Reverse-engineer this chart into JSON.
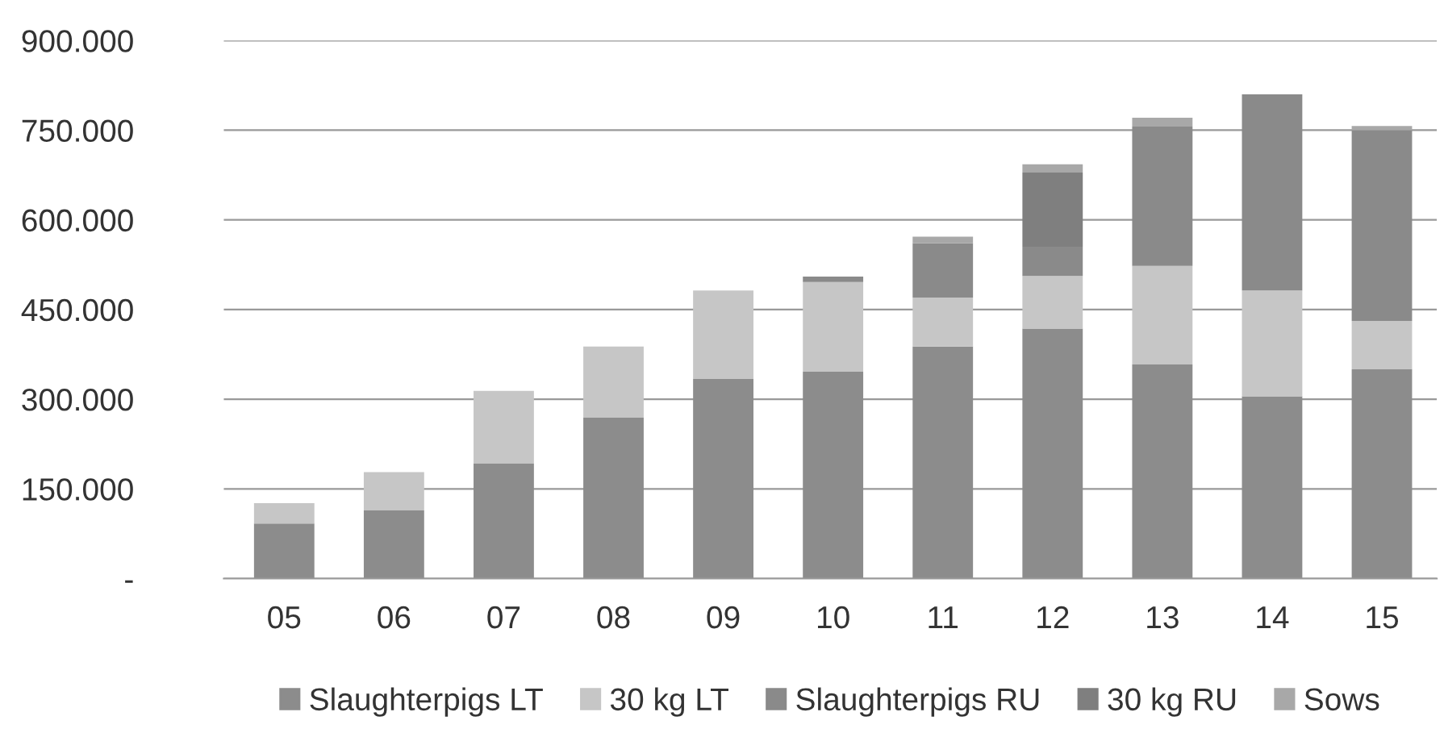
{
  "chart_data": {
    "type": "bar",
    "stacked": true,
    "categories": [
      "05",
      "06",
      "07",
      "08",
      "09",
      "10",
      "11",
      "12",
      "13",
      "14",
      "15"
    ],
    "series": [
      {
        "name": "Slaughterpigs LT",
        "color": "#8c8c8c",
        "values": [
          92,
          114,
          193,
          269,
          334,
          346,
          388,
          418,
          358,
          305,
          350
        ]
      },
      {
        "name": "30 kg LT",
        "color": "#c6c6c6",
        "values": [
          34,
          64,
          121,
          119,
          148,
          150,
          82,
          88,
          165,
          177,
          81
        ]
      },
      {
        "name": "Slaughterpigs RU",
        "color": "#8a8a8a",
        "values": [
          null,
          null,
          null,
          null,
          null,
          9,
          91,
          49,
          233,
          328,
          319
        ]
      },
      {
        "name": "30 kg RU",
        "color": "#7f7f7f",
        "values": [
          null,
          null,
          null,
          null,
          null,
          null,
          null,
          124,
          null,
          null,
          null
        ]
      },
      {
        "name": "Sows",
        "color": "#a8a8a8",
        "values": [
          null,
          null,
          null,
          null,
          null,
          null,
          11,
          14,
          15,
          null,
          7
        ]
      }
    ],
    "ylim": [
      0,
      900
    ],
    "yticks": [
      {
        "value": 0,
        "label": "-"
      },
      {
        "value": 150,
        "label": "150.000"
      },
      {
        "value": 300,
        "label": "300.000"
      },
      {
        "value": 450,
        "label": "450.000"
      },
      {
        "value": 600,
        "label": "600.000"
      },
      {
        "value": 750,
        "label": "750.000"
      },
      {
        "value": 900,
        "label": "900.000"
      }
    ],
    "grid": "y",
    "legend": "bottom"
  }
}
